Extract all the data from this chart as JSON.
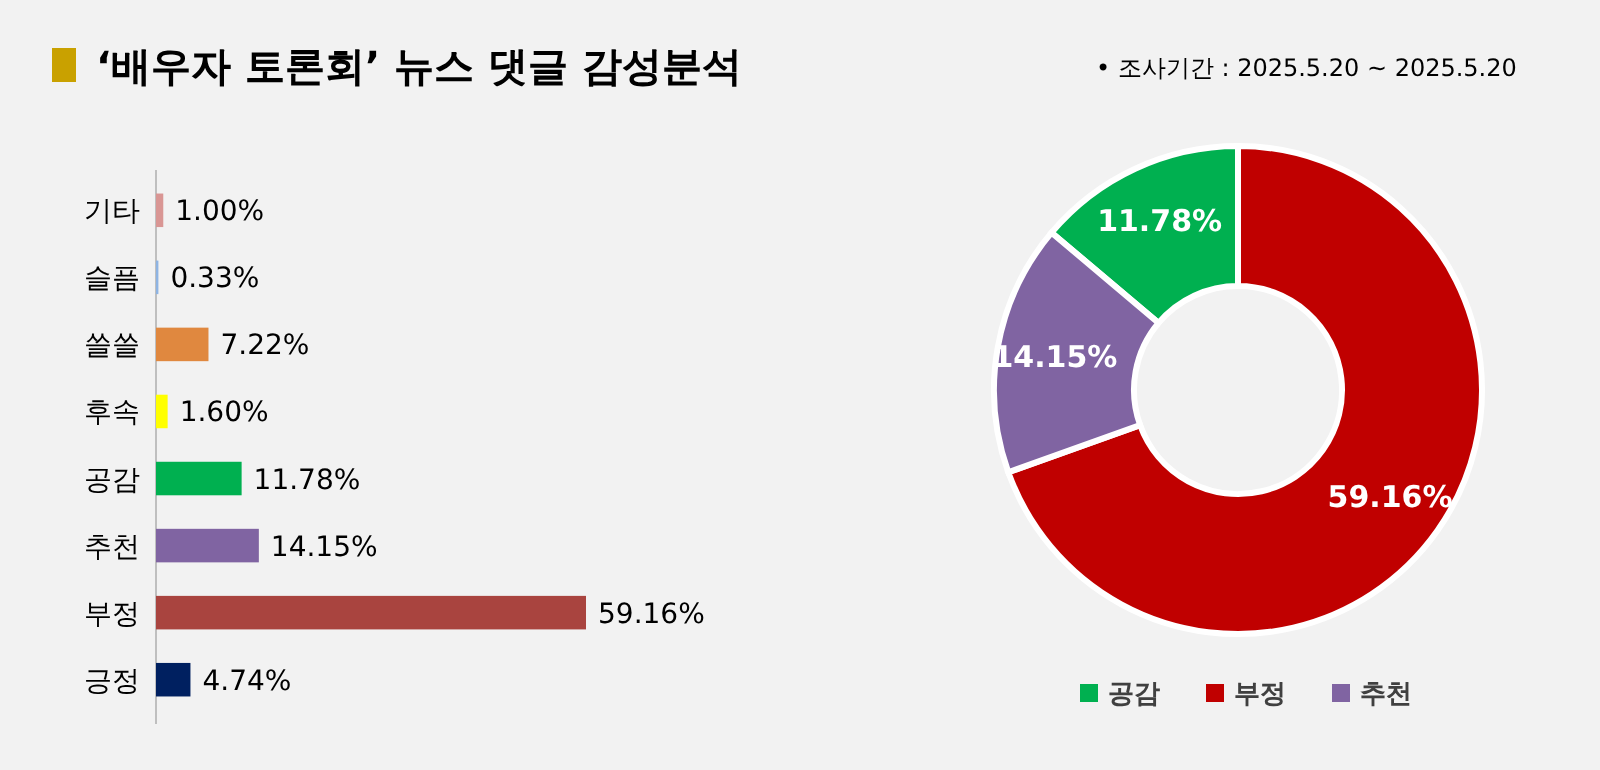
{
  "chart_data": [
    {
      "type": "bar",
      "title": "‘배우자 토론회’ 뉴스 댓글 감성분석",
      "orientation": "horizontal",
      "data_labels": true,
      "categories": [
        "기타",
        "슬픔",
        "쓸쓸",
        "후속",
        "공감",
        "추천",
        "부정",
        "긍정"
      ],
      "values": [
        1.0,
        0.33,
        7.22,
        1.6,
        11.78,
        14.15,
        59.16,
        4.74
      ],
      "value_labels": [
        "1.00%",
        "0.33%",
        "7.22%",
        "1.60%",
        "11.78%",
        "14.15%",
        "59.16%",
        "4.74%"
      ],
      "colors": [
        "#d99694",
        "#8eb4e3",
        "#e0883f",
        "#ffff00",
        "#00b050",
        "#8064a2",
        "#a9443f",
        "#002060"
      ]
    },
    {
      "type": "donut",
      "annotations": [
        "•  조사기간 : 2025.5.20 ~ 2025.5.20"
      ],
      "legend": "bottom",
      "data_labels": true,
      "categories": [
        "공감",
        "부정",
        "추천"
      ],
      "values": [
        11.78,
        59.16,
        14.15
      ],
      "value_labels": [
        "11.78%",
        "59.16%",
        "14.15%"
      ],
      "colors": [
        "#00b050",
        "#c00000",
        "#8064a2"
      ]
    }
  ]
}
